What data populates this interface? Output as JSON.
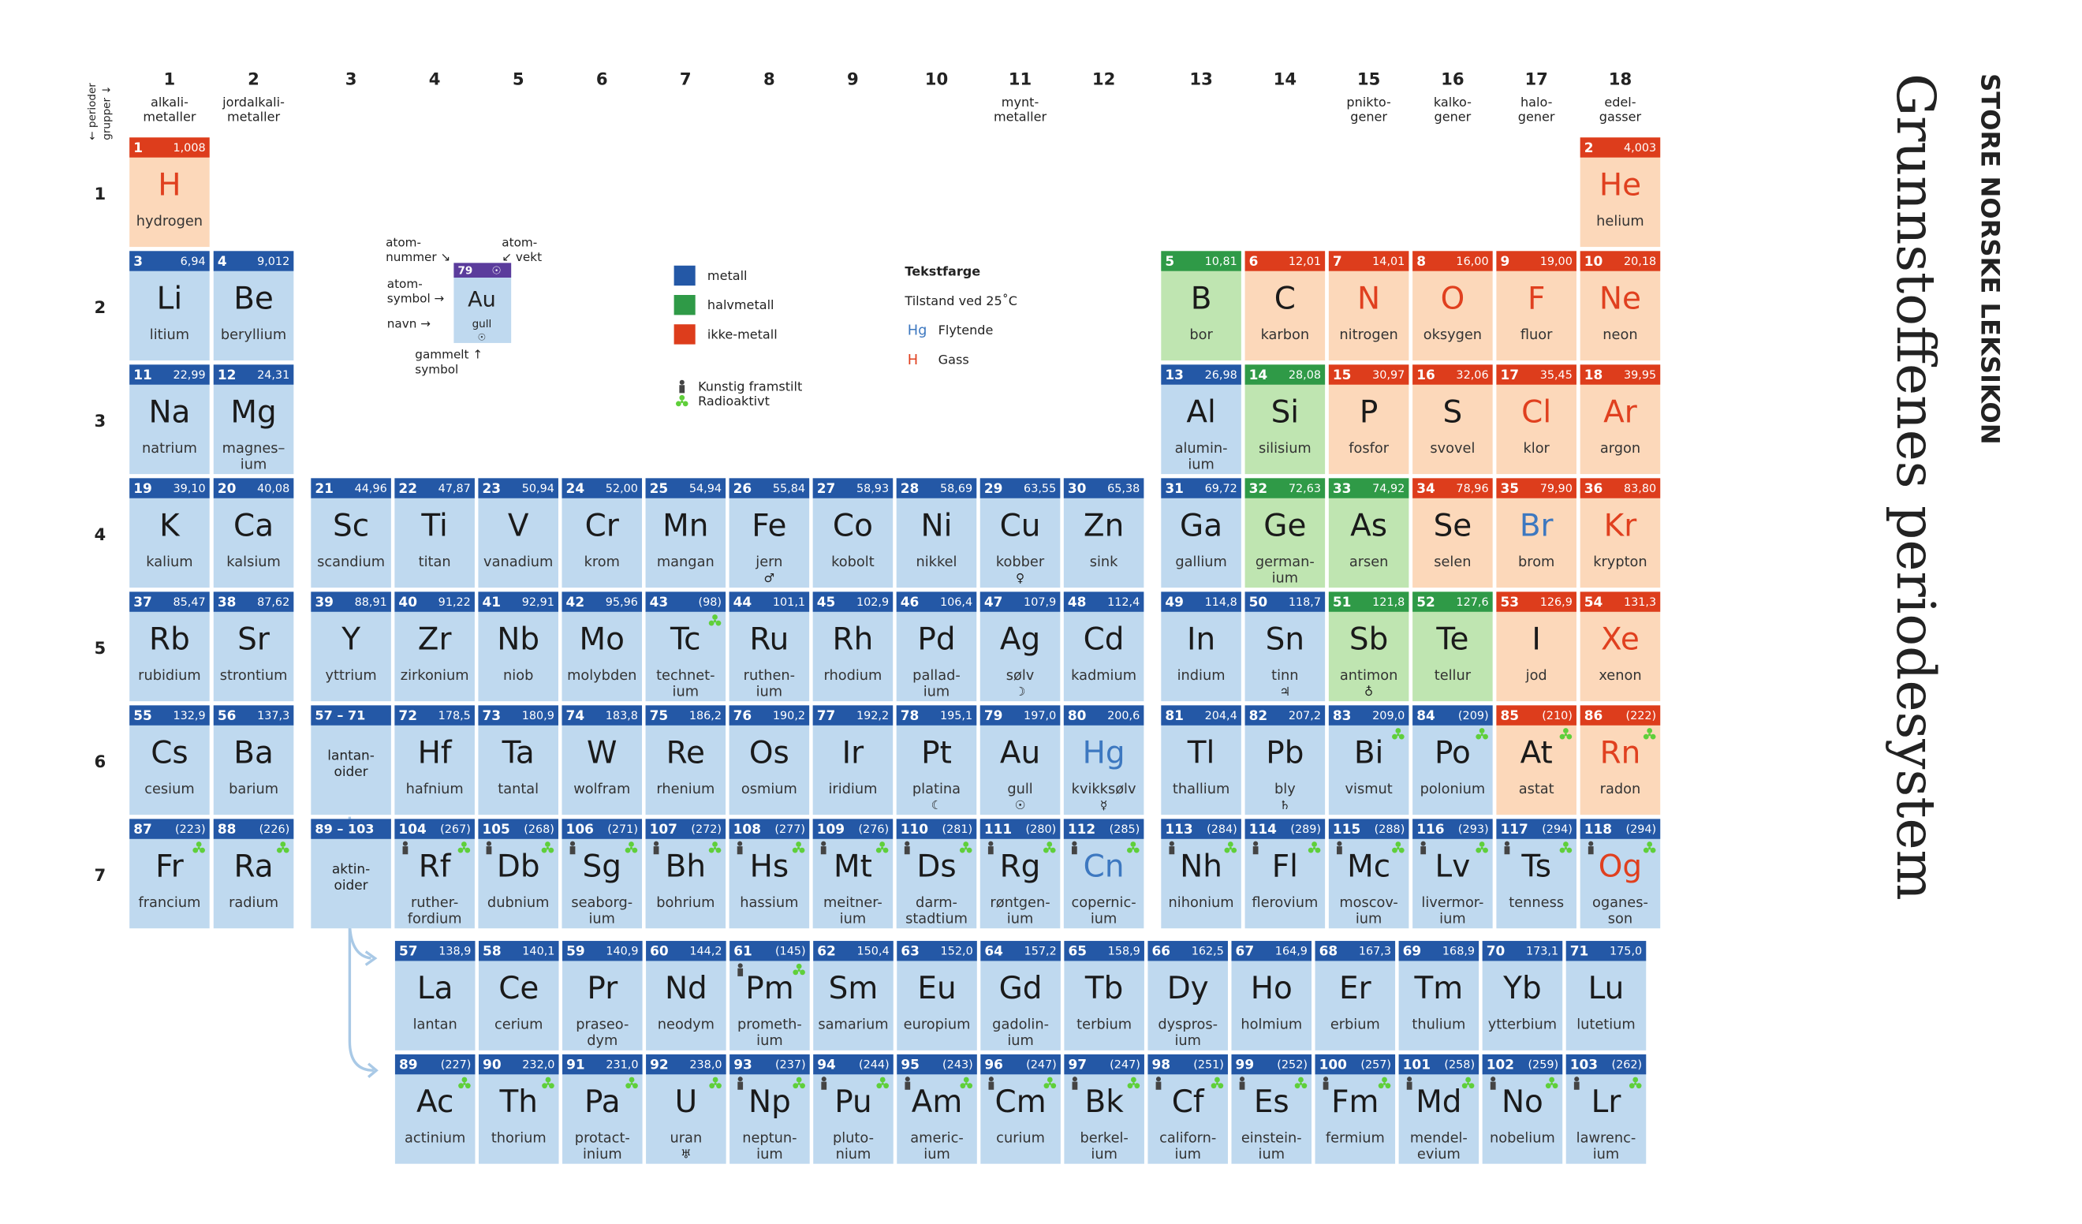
{
  "title": "Grunnstoffenes periodesystem",
  "publisher": "STORE NORSKE LEKSIKON",
  "axis_note": [
    "← perioder",
    "grupper ↓"
  ],
  "groups": [
    {
      "n": 1,
      "sub": [
        "alkali-",
        "metaller"
      ]
    },
    {
      "n": 2,
      "sub": [
        "jordalkali-",
        "metaller"
      ]
    },
    {
      "n": 3
    },
    {
      "n": 4
    },
    {
      "n": 5
    },
    {
      "n": 6
    },
    {
      "n": 7
    },
    {
      "n": 8
    },
    {
      "n": 9
    },
    {
      "n": 10
    },
    {
      "n": 11,
      "sub": [
        "mynt-",
        "metaller"
      ]
    },
    {
      "n": 12
    },
    {
      "n": 13
    },
    {
      "n": 14
    },
    {
      "n": 15,
      "sub": [
        "pnikto-",
        "gener"
      ]
    },
    {
      "n": 16,
      "sub": [
        "kalko-",
        "gener"
      ]
    },
    {
      "n": 17,
      "sub": [
        "halo-",
        "gener"
      ]
    },
    {
      "n": 18,
      "sub": [
        "edel-",
        "gasser"
      ]
    }
  ],
  "periods": [
    1,
    2,
    3,
    4,
    5,
    6,
    7
  ],
  "placeholders": [
    {
      "range": "57 – 71",
      "label": [
        "lantan-",
        "oider"
      ]
    },
    {
      "range": "89 – 103",
      "label": [
        "aktin-",
        "oider"
      ]
    }
  ],
  "categories": [
    {
      "label": "metall",
      "header": "#2458a6",
      "fill": "#bfd9ef"
    },
    {
      "label": "halvmetall",
      "header": "#2f9a47",
      "fill": "#bfe5b1"
    },
    {
      "label": "ikke-metall",
      "header": "#dd3d1c",
      "fill": "#fcd8ba"
    }
  ],
  "text_color": {
    "title": "Tekstfarge",
    "subtitle": "Tilstand ved 25˚C",
    "states": [
      {
        "sym": "Hg",
        "label": "Flytende",
        "color": "#3d78c0"
      },
      {
        "sym": "H",
        "label": "Gass",
        "color": "#e0401f"
      }
    ]
  },
  "icons": {
    "synthetic": "Kunstig framstilt",
    "radioactive": "Radioaktivt"
  },
  "key": {
    "number": 79,
    "symbol": "Au",
    "name": "gull",
    "glyph": "☉",
    "labels": {
      "number": [
        "atom-",
        "nummer ↘"
      ],
      "mass": [
        "atom-",
        "↙ vekt"
      ],
      "symbol": [
        "atom-",
        "symbol →"
      ],
      "name": "navn →",
      "glyph": [
        "gammelt ↑",
        "symbol"
      ]
    }
  },
  "elements": [
    {
      "z": 1,
      "m": "1,008",
      "s": "H",
      "n": [
        "hydrogen"
      ],
      "c": 2,
      "t": 1
    },
    {
      "z": 2,
      "m": "4,003",
      "s": "He",
      "n": [
        "helium"
      ],
      "c": 2,
      "t": 1
    },
    {
      "z": 3,
      "m": "6,94",
      "s": "Li",
      "n": [
        "litium"
      ]
    },
    {
      "z": 4,
      "m": "9,012",
      "s": "Be",
      "n": [
        "beryllium"
      ]
    },
    {
      "z": 5,
      "m": "10,81",
      "s": "B",
      "n": [
        "bor"
      ],
      "c": 1
    },
    {
      "z": 6,
      "m": "12,01",
      "s": "C",
      "n": [
        "karbon"
      ],
      "c": 2
    },
    {
      "z": 7,
      "m": "14,01",
      "s": "N",
      "n": [
        "nitrogen"
      ],
      "c": 2,
      "t": 1
    },
    {
      "z": 8,
      "m": "16,00",
      "s": "O",
      "n": [
        "oksygen"
      ],
      "c": 2,
      "t": 1
    },
    {
      "z": 9,
      "m": "19,00",
      "s": "F",
      "n": [
        "fluor"
      ],
      "c": 2,
      "t": 1
    },
    {
      "z": 10,
      "m": "20,18",
      "s": "Ne",
      "n": [
        "neon"
      ],
      "c": 2,
      "t": 1
    },
    {
      "z": 11,
      "m": "22,99",
      "s": "Na",
      "n": [
        "natrium"
      ]
    },
    {
      "z": 12,
      "m": "24,31",
      "s": "Mg",
      "n": [
        "magnes–",
        "ium"
      ]
    },
    {
      "z": 13,
      "m": "26,98",
      "s": "Al",
      "n": [
        "alumin-",
        "ium"
      ]
    },
    {
      "z": 14,
      "m": "28,08",
      "s": "Si",
      "n": [
        "silisium"
      ],
      "c": 1
    },
    {
      "z": 15,
      "m": "30,97",
      "s": "P",
      "n": [
        "fosfor"
      ],
      "c": 2
    },
    {
      "z": 16,
      "m": "32,06",
      "s": "S",
      "n": [
        "svovel"
      ],
      "c": 2
    },
    {
      "z": 17,
      "m": "35,45",
      "s": "Cl",
      "n": [
        "klor"
      ],
      "c": 2,
      "t": 1
    },
    {
      "z": 18,
      "m": "39,95",
      "s": "Ar",
      "n": [
        "argon"
      ],
      "c": 2,
      "t": 1
    },
    {
      "z": 19,
      "m": "39,10",
      "s": "K",
      "n": [
        "kalium"
      ]
    },
    {
      "z": 20,
      "m": "40,08",
      "s": "Ca",
      "n": [
        "kalsium"
      ]
    },
    {
      "z": 21,
      "m": "44,96",
      "s": "Sc",
      "n": [
        "scandium"
      ]
    },
    {
      "z": 22,
      "m": "47,87",
      "s": "Ti",
      "n": [
        "titan"
      ]
    },
    {
      "z": 23,
      "m": "50,94",
      "s": "V",
      "n": [
        "vanadium"
      ]
    },
    {
      "z": 24,
      "m": "52,00",
      "s": "Cr",
      "n": [
        "krom"
      ]
    },
    {
      "z": 25,
      "m": "54,94",
      "s": "Mn",
      "n": [
        "mangan"
      ]
    },
    {
      "z": 26,
      "m": "55,84",
      "s": "Fe",
      "n": [
        "jern"
      ],
      "g": "♂"
    },
    {
      "z": 27,
      "m": "58,93",
      "s": "Co",
      "n": [
        "kobolt"
      ]
    },
    {
      "z": 28,
      "m": "58,69",
      "s": "Ni",
      "n": [
        "nikkel"
      ]
    },
    {
      "z": 29,
      "m": "63,55",
      "s": "Cu",
      "n": [
        "kobber"
      ],
      "g": "♀"
    },
    {
      "z": 30,
      "m": "65,38",
      "s": "Zn",
      "n": [
        "sink"
      ]
    },
    {
      "z": 31,
      "m": "69,72",
      "s": "Ga",
      "n": [
        "gallium"
      ]
    },
    {
      "z": 32,
      "m": "72,63",
      "s": "Ge",
      "n": [
        "german-",
        "ium"
      ],
      "c": 1
    },
    {
      "z": 33,
      "m": "74,92",
      "s": "As",
      "n": [
        "arsen"
      ],
      "c": 1
    },
    {
      "z": 34,
      "m": "78,96",
      "s": "Se",
      "n": [
        "selen"
      ],
      "c": 2
    },
    {
      "z": 35,
      "m": "79,90",
      "s": "Br",
      "n": [
        "brom"
      ],
      "c": 2,
      "t": 0
    },
    {
      "z": 36,
      "m": "83,80",
      "s": "Kr",
      "n": [
        "krypton"
      ],
      "c": 2,
      "t": 1
    },
    {
      "z": 37,
      "m": "85,47",
      "s": "Rb",
      "n": [
        "rubidium"
      ]
    },
    {
      "z": 38,
      "m": "87,62",
      "s": "Sr",
      "n": [
        "strontium"
      ]
    },
    {
      "z": 39,
      "m": "88,91",
      "s": "Y",
      "n": [
        "yttrium"
      ]
    },
    {
      "z": 40,
      "m": "91,22",
      "s": "Zr",
      "n": [
        "zirkonium"
      ]
    },
    {
      "z": 41,
      "m": "92,91",
      "s": "Nb",
      "n": [
        "niob"
      ]
    },
    {
      "z": 42,
      "m": "95,96",
      "s": "Mo",
      "n": [
        "molybden"
      ]
    },
    {
      "z": 43,
      "m": "(98)",
      "s": "Tc",
      "n": [
        "technet-",
        "ium"
      ],
      "r": true
    },
    {
      "z": 44,
      "m": "101,1",
      "s": "Ru",
      "n": [
        "ruthen-",
        "ium"
      ]
    },
    {
      "z": 45,
      "m": "102,9",
      "s": "Rh",
      "n": [
        "rhodium"
      ]
    },
    {
      "z": 46,
      "m": "106,4",
      "s": "Pd",
      "n": [
        "pallad-",
        "ium"
      ]
    },
    {
      "z": 47,
      "m": "107,9",
      "s": "Ag",
      "n": [
        "sølv"
      ],
      "g": "☽"
    },
    {
      "z": 48,
      "m": "112,4",
      "s": "Cd",
      "n": [
        "kadmium"
      ]
    },
    {
      "z": 49,
      "m": "114,8",
      "s": "In",
      "n": [
        "indium"
      ]
    },
    {
      "z": 50,
      "m": "118,7",
      "s": "Sn",
      "n": [
        "tinn"
      ],
      "g": "♃"
    },
    {
      "z": 51,
      "m": "121,8",
      "s": "Sb",
      "n": [
        "antimon"
      ],
      "c": 1,
      "g": "♁"
    },
    {
      "z": 52,
      "m": "127,6",
      "s": "Te",
      "n": [
        "tellur"
      ],
      "c": 1
    },
    {
      "z": 53,
      "m": "126,9",
      "s": "I",
      "n": [
        "jod"
      ],
      "c": 2
    },
    {
      "z": 54,
      "m": "131,3",
      "s": "Xe",
      "n": [
        "xenon"
      ],
      "c": 2,
      "t": 1
    },
    {
      "z": 55,
      "m": "132,9",
      "s": "Cs",
      "n": [
        "cesium"
      ]
    },
    {
      "z": 56,
      "m": "137,3",
      "s": "Ba",
      "n": [
        "barium"
      ]
    },
    {
      "z": 57,
      "m": "138,9",
      "s": "La",
      "n": [
        "lantan"
      ]
    },
    {
      "z": 58,
      "m": "140,1",
      "s": "Ce",
      "n": [
        "cerium"
      ]
    },
    {
      "z": 59,
      "m": "140,9",
      "s": "Pr",
      "n": [
        "praseo-",
        "dym"
      ]
    },
    {
      "z": 60,
      "m": "144,2",
      "s": "Nd",
      "n": [
        "neodym"
      ]
    },
    {
      "z": 61,
      "m": "(145)",
      "s": "Pm",
      "n": [
        "prometh-",
        "ium"
      ],
      "r": true,
      "a": true
    },
    {
      "z": 62,
      "m": "150,4",
      "s": "Sm",
      "n": [
        "samarium"
      ]
    },
    {
      "z": 63,
      "m": "152,0",
      "s": "Eu",
      "n": [
        "europium"
      ]
    },
    {
      "z": 64,
      "m": "157,2",
      "s": "Gd",
      "n": [
        "gadolin-",
        "ium"
      ]
    },
    {
      "z": 65,
      "m": "158,9",
      "s": "Tb",
      "n": [
        "terbium"
      ]
    },
    {
      "z": 66,
      "m": "162,5",
      "s": "Dy",
      "n": [
        "dyspros-",
        "ium"
      ]
    },
    {
      "z": 67,
      "m": "164,9",
      "s": "Ho",
      "n": [
        "holmium"
      ]
    },
    {
      "z": 68,
      "m": "167,3",
      "s": "Er",
      "n": [
        "erbium"
      ]
    },
    {
      "z": 69,
      "m": "168,9",
      "s": "Tm",
      "n": [
        "thulium"
      ]
    },
    {
      "z": 70,
      "m": "173,1",
      "s": "Yb",
      "n": [
        "ytterbium"
      ]
    },
    {
      "z": 71,
      "m": "175,0",
      "s": "Lu",
      "n": [
        "lutetium"
      ]
    },
    {
      "z": 72,
      "m": "178,5",
      "s": "Hf",
      "n": [
        "hafnium"
      ]
    },
    {
      "z": 73,
      "m": "180,9",
      "s": "Ta",
      "n": [
        "tantal"
      ]
    },
    {
      "z": 74,
      "m": "183,8",
      "s": "W",
      "n": [
        "wolfram"
      ]
    },
    {
      "z": 75,
      "m": "186,2",
      "s": "Re",
      "n": [
        "rhenium"
      ]
    },
    {
      "z": 76,
      "m": "190,2",
      "s": "Os",
      "n": [
        "osmium"
      ]
    },
    {
      "z": 77,
      "m": "192,2",
      "s": "Ir",
      "n": [
        "iridium"
      ]
    },
    {
      "z": 78,
      "m": "195,1",
      "s": "Pt",
      "n": [
        "platina"
      ],
      "g": "☾"
    },
    {
      "z": 79,
      "m": "197,0",
      "s": "Au",
      "n": [
        "gull"
      ],
      "g": "☉"
    },
    {
      "z": 80,
      "m": "200,6",
      "s": "Hg",
      "n": [
        "kvikksølv"
      ],
      "t": 0,
      "g": "☿"
    },
    {
      "z": 81,
      "m": "204,4",
      "s": "Tl",
      "n": [
        "thallium"
      ]
    },
    {
      "z": 82,
      "m": "207,2",
      "s": "Pb",
      "n": [
        "bly"
      ],
      "g": "♄"
    },
    {
      "z": 83,
      "m": "209,0",
      "s": "Bi",
      "n": [
        "vismut"
      ],
      "r": true
    },
    {
      "z": 84,
      "m": "(209)",
      "s": "Po",
      "n": [
        "polonium"
      ],
      "r": true
    },
    {
      "z": 85,
      "m": "(210)",
      "s": "At",
      "n": [
        "astat"
      ],
      "c": 2,
      "r": true
    },
    {
      "z": 86,
      "m": "(222)",
      "s": "Rn",
      "n": [
        "radon"
      ],
      "c": 2,
      "t": 1,
      "r": true
    },
    {
      "z": 87,
      "m": "(223)",
      "s": "Fr",
      "n": [
        "francium"
      ],
      "r": true
    },
    {
      "z": 88,
      "m": "(226)",
      "s": "Ra",
      "n": [
        "radium"
      ],
      "r": true
    },
    {
      "z": 89,
      "m": "(227)",
      "s": "Ac",
      "n": [
        "actinium"
      ],
      "r": true
    },
    {
      "z": 90,
      "m": "232,0",
      "s": "Th",
      "n": [
        "thorium"
      ],
      "r": true
    },
    {
      "z": 91,
      "m": "231,0",
      "s": "Pa",
      "n": [
        "protact-",
        "inium"
      ],
      "r": true
    },
    {
      "z": 92,
      "m": "238,0",
      "s": "U",
      "n": [
        "uran"
      ],
      "r": true,
      "g": "♅"
    },
    {
      "z": 93,
      "m": "(237)",
      "s": "Np",
      "n": [
        "neptun-",
        "ium"
      ],
      "r": true,
      "a": true
    },
    {
      "z": 94,
      "m": "(244)",
      "s": "Pu",
      "n": [
        "pluto-",
        "nium"
      ],
      "r": true,
      "a": true
    },
    {
      "z": 95,
      "m": "(243)",
      "s": "Am",
      "n": [
        "americ-",
        "ium"
      ],
      "r": true,
      "a": true
    },
    {
      "z": 96,
      "m": "(247)",
      "s": "Cm",
      "n": [
        "curium"
      ],
      "r": true,
      "a": true
    },
    {
      "z": 97,
      "m": "(247)",
      "s": "Bk",
      "n": [
        "berkel-",
        "ium"
      ],
      "r": true,
      "a": true
    },
    {
      "z": 98,
      "m": "(251)",
      "s": "Cf",
      "n": [
        "californ-",
        "ium"
      ],
      "r": true,
      "a": true
    },
    {
      "z": 99,
      "m": "(252)",
      "s": "Es",
      "n": [
        "einstein-",
        "ium"
      ],
      "r": true,
      "a": true
    },
    {
      "z": 100,
      "m": "(257)",
      "s": "Fm",
      "n": [
        "fermium"
      ],
      "r": true,
      "a": true
    },
    {
      "z": 101,
      "m": "(258)",
      "s": "Md",
      "n": [
        "mendel-",
        "evium"
      ],
      "r": true,
      "a": true
    },
    {
      "z": 102,
      "m": "(259)",
      "s": "No",
      "n": [
        "nobelium"
      ],
      "r": true,
      "a": true
    },
    {
      "z": 103,
      "m": "(262)",
      "s": "Lr",
      "n": [
        "lawrenc-",
        "ium"
      ],
      "r": true,
      "a": true
    },
    {
      "z": 104,
      "m": "(267)",
      "s": "Rf",
      "n": [
        "ruther-",
        "fordium"
      ],
      "r": true,
      "a": true
    },
    {
      "z": 105,
      "m": "(268)",
      "s": "Db",
      "n": [
        "dubnium"
      ],
      "r": true,
      "a": true
    },
    {
      "z": 106,
      "m": "(271)",
      "s": "Sg",
      "n": [
        "seaborg-",
        "ium"
      ],
      "r": true,
      "a": true
    },
    {
      "z": 107,
      "m": "(272)",
      "s": "Bh",
      "n": [
        "bohrium"
      ],
      "r": true,
      "a": true
    },
    {
      "z": 108,
      "m": "(277)",
      "s": "Hs",
      "n": [
        "hassium"
      ],
      "r": true,
      "a": true
    },
    {
      "z": 109,
      "m": "(276)",
      "s": "Mt",
      "n": [
        "meitner-",
        "ium"
      ],
      "r": true,
      "a": true
    },
    {
      "z": 110,
      "m": "(281)",
      "s": "Ds",
      "n": [
        "darm-",
        "stadtium"
      ],
      "r": true,
      "a": true
    },
    {
      "z": 111,
      "m": "(280)",
      "s": "Rg",
      "n": [
        "røntgen-",
        "ium"
      ],
      "r": true,
      "a": true
    },
    {
      "z": 112,
      "m": "(285)",
      "s": "Cn",
      "n": [
        "copernic-",
        "ium"
      ],
      "t": 0,
      "r": true,
      "a": true
    },
    {
      "z": 113,
      "m": "(284)",
      "s": "Nh",
      "n": [
        "nihonium"
      ],
      "r": true,
      "a": true
    },
    {
      "z": 114,
      "m": "(289)",
      "s": "Fl",
      "n": [
        "flerovium"
      ],
      "r": true,
      "a": true
    },
    {
      "z": 115,
      "m": "(288)",
      "s": "Mc",
      "n": [
        "moscov-",
        "ium"
      ],
      "r": true,
      "a": true
    },
    {
      "z": 116,
      "m": "(293)",
      "s": "Lv",
      "n": [
        "livermor-",
        "ium"
      ],
      "r": true,
      "a": true
    },
    {
      "z": 117,
      "m": "(294)",
      "s": "Ts",
      "n": [
        "tenness"
      ],
      "r": true,
      "a": true
    },
    {
      "z": 118,
      "m": "(294)",
      "s": "Og",
      "n": [
        "oganes-",
        "son"
      ],
      "t": 1,
      "r": true,
      "a": true
    }
  ]
}
